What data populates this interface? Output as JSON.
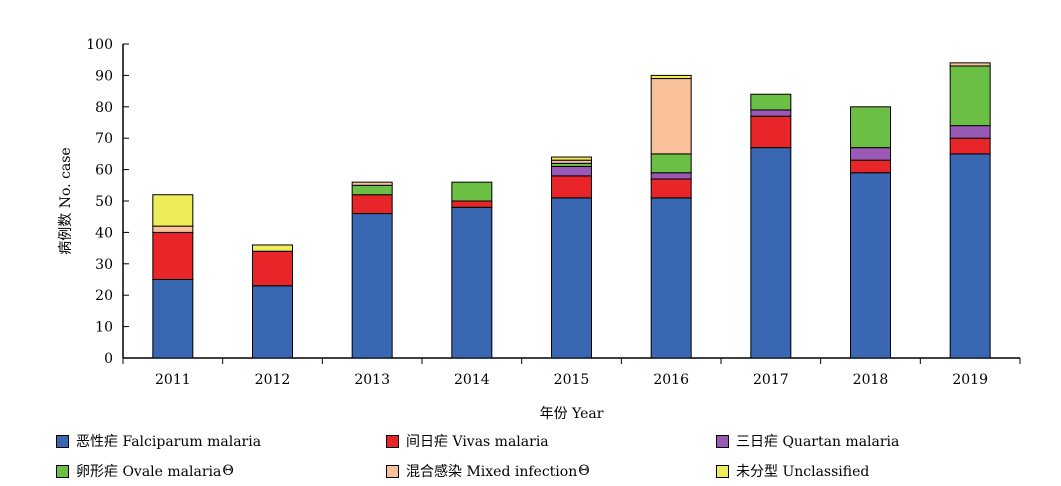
{
  "chart_data": {
    "type": "bar",
    "stacked": true,
    "categories": [
      "2011",
      "2012",
      "2013",
      "2014",
      "2015",
      "2016",
      "2017",
      "2018",
      "2019"
    ],
    "series": [
      {
        "name": "恶性疟  Falciparum  malaria",
        "color": "#3a67b1",
        "values": [
          25,
          23,
          46,
          48,
          51,
          51,
          67,
          59,
          65
        ]
      },
      {
        "name": "间日疟  Vivas  malaria",
        "color": "#e8262a",
        "values": [
          15,
          11,
          6,
          2,
          7,
          6,
          10,
          4,
          5
        ]
      },
      {
        "name": "三日疟  Quartan  malaria",
        "color": "#9b59b6",
        "values": [
          0,
          0,
          0,
          0,
          3,
          2,
          2,
          4,
          4
        ]
      },
      {
        "name": "卵形疟  Ovale  malaria",
        "color": "#6cbf45",
        "values": [
          0,
          0,
          3,
          6,
          1,
          6,
          5,
          13,
          19
        ]
      },
      {
        "name": "混合感染  Mixed  infection",
        "color": "#f9c19a",
        "values": [
          2,
          0,
          1,
          0,
          1,
          24,
          0,
          0,
          1
        ]
      },
      {
        "name": "未分型  Unclassified",
        "color": "#eded5a",
        "values": [
          10,
          2,
          0,
          0,
          1,
          1,
          0,
          0,
          0
        ]
      }
    ],
    "ylabel": "病例数  No.  case",
    "xlabel": "年份  Year",
    "ylim": [
      0,
      100
    ],
    "yticks": [
      0,
      10,
      20,
      30,
      40,
      50,
      60,
      70,
      80,
      90,
      100
    ],
    "grid": false,
    "legend_position": "bottom"
  },
  "legend": {
    "theta_symbol": "Θ"
  }
}
